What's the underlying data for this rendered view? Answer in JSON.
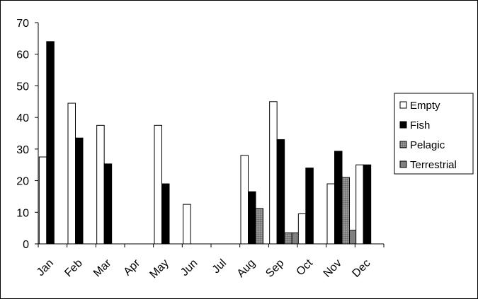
{
  "chart_data": {
    "type": "bar",
    "categories": [
      "Jan",
      "Feb",
      "Mar",
      "Apr",
      "May",
      "Jun",
      "Jul",
      "Aug",
      "Sep",
      "Oct",
      "Nov",
      "Dec"
    ],
    "series": [
      {
        "name": "Empty",
        "fill": "#ffffff",
        "pattern": "none",
        "values": [
          27.5,
          44.5,
          37.5,
          0,
          37.5,
          12.5,
          0,
          28,
          45,
          9.5,
          19,
          25
        ]
      },
      {
        "name": "Fish",
        "fill": "#000000",
        "pattern": "none",
        "values": [
          64,
          33.5,
          25.3,
          0,
          19,
          0,
          0,
          16.5,
          33,
          24,
          29.3,
          25
        ]
      },
      {
        "name": "Pelagic",
        "fill": "#a0a0a0",
        "pattern": "grid",
        "values": [
          0,
          0,
          0,
          0,
          0,
          0,
          0,
          11.2,
          3.5,
          0,
          21,
          0
        ]
      },
      {
        "name": "Terrestrial",
        "fill": "#808080",
        "pattern": "none",
        "values": [
          0,
          0,
          0,
          0,
          0,
          0,
          0,
          0,
          3.5,
          0,
          4.3,
          0
        ]
      }
    ],
    "title": "",
    "xlabel": "",
    "ylabel": "",
    "ylim": [
      0,
      70
    ],
    "yticks": [
      "0",
      "10",
      "20",
      "30",
      "40",
      "50",
      "60",
      "70"
    ],
    "grid": false,
    "legend_position": "right"
  }
}
